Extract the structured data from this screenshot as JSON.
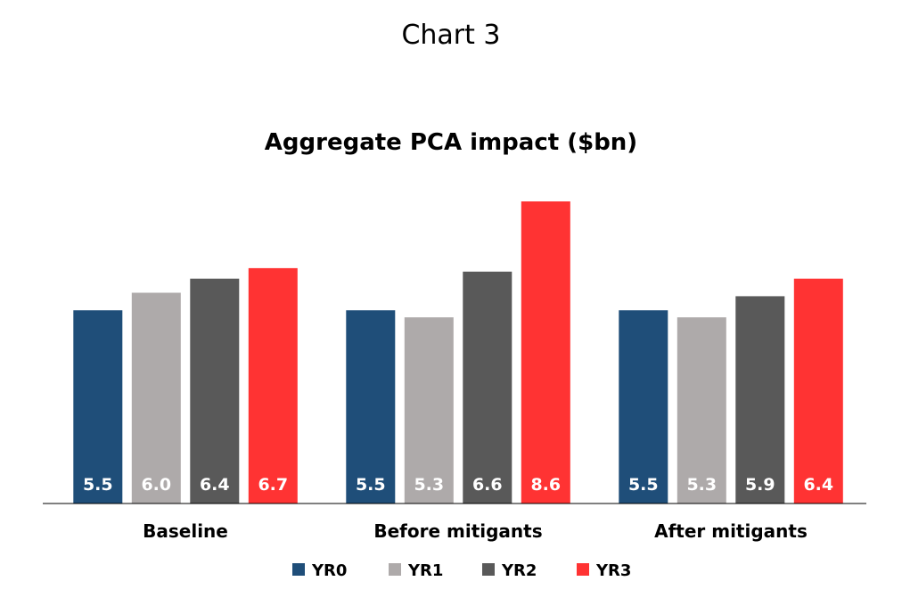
{
  "header_title": "Chart 3",
  "chart_data": {
    "type": "bar",
    "title": "Aggregate PCA impact ($bn)",
    "xlabel": "",
    "ylabel": "",
    "categories": [
      "Baseline",
      "Before mitigants",
      "After mitigants"
    ],
    "series": [
      {
        "name": "YR0",
        "color": "#1f4e79",
        "label_color": "#ffffff",
        "values": [
          5.5,
          5.5,
          5.5
        ]
      },
      {
        "name": "YR1",
        "color": "#aeaaaa",
        "label_color": "#ffffff",
        "values": [
          6.0,
          5.3,
          5.3
        ]
      },
      {
        "name": "YR2",
        "color": "#595959",
        "label_color": "#ffffff",
        "values": [
          6.4,
          6.6,
          5.9
        ]
      },
      {
        "name": "YR3",
        "color": "#ff3333",
        "label_color": "#ffffff",
        "values": [
          6.7,
          8.6,
          6.4
        ]
      }
    ],
    "ylim": [
      0,
      9
    ],
    "grid": false,
    "legend": "bottom",
    "data_labels": "inside-base"
  }
}
